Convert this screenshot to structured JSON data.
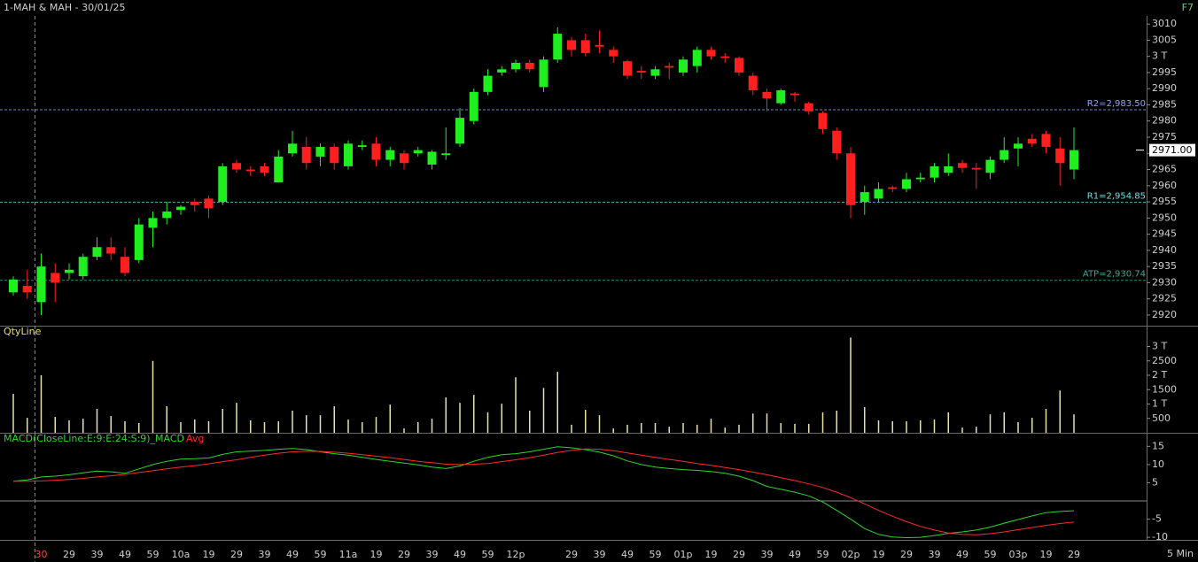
{
  "chart_data": [
    {
      "type": "candlestick",
      "title": "1-MAH & MAH - 30/01/25",
      "shortcut": "F7",
      "interval": "5 Min",
      "up_color": "#1fef1f",
      "down_color": "#ff1f1f",
      "categories": [
        null,
        null,
        "30",
        null,
        "29",
        null,
        "39",
        null,
        "49",
        null,
        "59",
        null,
        "10a",
        null,
        "19",
        null,
        "29",
        null,
        "39",
        null,
        "49",
        null,
        "59",
        null,
        "11a",
        null,
        "19",
        null,
        "29",
        null,
        "39",
        null,
        "49",
        null,
        "59",
        null,
        "12p",
        null,
        null,
        null,
        "29",
        null,
        "39",
        null,
        "49",
        null,
        "59",
        null,
        "01p",
        null,
        "19",
        null,
        "29",
        null,
        "39",
        null,
        "49",
        null,
        "59",
        null,
        "02p",
        null,
        "19",
        null,
        "29",
        null,
        "39",
        null,
        "49",
        null,
        "59",
        null,
        "03p",
        null,
        "19",
        null,
        "29"
      ],
      "open": [
        2927,
        2929,
        2924,
        2933,
        2933,
        2932,
        2938,
        2941,
        2938,
        2937,
        2947,
        2950,
        2952.5,
        2955,
        2956,
        2955,
        2967,
        2965,
        2966,
        2961,
        2970,
        2972,
        2969,
        2972,
        2966,
        2972,
        2973,
        2968,
        2970,
        2970,
        2966.5,
        2969.5,
        2973,
        2980,
        2989,
        2995,
        2996,
        2998,
        2990.5,
        2999,
        3005,
        3005,
        3003.5,
        3002,
        2998.5,
        2995.5,
        2994,
        2997,
        2995,
        2997,
        3002,
        3000,
        2999.5,
        2994,
        2989,
        2985.5,
        2988.5,
        2985.5,
        2982.5,
        2977,
        2970,
        2955,
        2956,
        2959.5,
        2959,
        2962,
        2962.5,
        2964,
        2967,
        2965.5,
        2964,
        2968,
        2971.5,
        2974.5,
        2976,
        2971.5,
        2965
      ],
      "high": [
        2932,
        2934,
        2939,
        2936,
        2936,
        2939,
        2944,
        2944,
        2941,
        2950,
        2952,
        2955,
        2954,
        2956,
        2957,
        2967,
        2968,
        2966,
        2967,
        2971,
        2977,
        2975,
        2973,
        2973,
        2974,
        2974,
        2975,
        2972,
        2971,
        2972,
        2971,
        2978,
        2984,
        2990,
        2996,
        2997,
        2999,
        2999,
        3000,
        3009,
        3006,
        3007,
        3008,
        3003,
        2999,
        2997,
        2997,
        2998,
        3000,
        3003,
        3003,
        3001,
        3000,
        2995,
        2990,
        2990,
        2989,
        2986,
        2983,
        2978,
        2972,
        2960,
        2961,
        2960,
        2964,
        2964,
        2967,
        2970,
        2968,
        2967,
        2969,
        2975,
        2975,
        2976,
        2977,
        2975,
        2978
      ],
      "low": [
        2926,
        2925,
        2920,
        2924,
        2931,
        2931,
        2937,
        2937,
        2932,
        2936,
        2941,
        2948,
        2951,
        2952,
        2950,
        2954,
        2964,
        2963,
        2963,
        2961,
        2969,
        2965,
        2966,
        2965,
        2965,
        2971,
        2966,
        2966,
        2965,
        2969,
        2965,
        2968,
        2972,
        2979,
        2988,
        2994,
        2995,
        2995,
        2989,
        2998,
        3000,
        3000,
        3001,
        2998,
        2993,
        2993,
        2993,
        2993,
        2994,
        2995,
        2999,
        2998,
        2994,
        2988,
        2983,
        2985,
        2986,
        2982,
        2976,
        2968,
        2950,
        2951,
        2955,
        2958,
        2958,
        2961,
        2961,
        2963,
        2964,
        2959,
        2962,
        2967,
        2966,
        2972,
        2970,
        2960,
        2962
      ],
      "close": [
        2931,
        2927,
        2935,
        2930,
        2934,
        2938,
        2941,
        2939,
        2933,
        2948,
        2950,
        2952,
        2953.5,
        2954,
        2953,
        2966,
        2965,
        2964.5,
        2964,
        2969,
        2973,
        2967,
        2972,
        2967,
        2973,
        2972.5,
        2968,
        2971,
        2967,
        2971,
        2970.5,
        2970,
        2981,
        2989,
        2994,
        2996,
        2998,
        2996,
        2999,
        3007,
        3002,
        3001,
        3003,
        3000,
        2994,
        2995,
        2996,
        2996.5,
        2999,
        3002,
        3000,
        2999.5,
        2995,
        2989.5,
        2987,
        2989.5,
        2988,
        2983,
        2977.5,
        2970,
        2954,
        2958,
        2959,
        2959,
        2962,
        2962.5,
        2966,
        2966,
        2965.5,
        2965,
        2968,
        2971,
        2973,
        2973,
        2972,
        2967,
        2971
      ],
      "ylim": [
        2916.7,
        3012.5
      ],
      "yticks": [
        3010,
        3005,
        {
          "value": 3000,
          "label": "3 T"
        },
        2995,
        2990,
        2985,
        2980,
        2975,
        2970,
        2965,
        2960,
        2955,
        2950,
        2945,
        2940,
        2935,
        2930,
        2925,
        2920
      ],
      "levels": [
        {
          "label": "R2=2,983.50",
          "value": 2983.5,
          "color": "#8ea6ff"
        },
        {
          "label": "R1=2,954.85",
          "value": 2954.85,
          "color": "#6fe0e8"
        },
        {
          "label": "ATP=2,930.74",
          "value": 2930.74,
          "color": "#3aa99a"
        }
      ],
      "last_price": {
        "value": 2971,
        "label": "2971.00"
      }
    },
    {
      "type": "bar",
      "title": "QtyLine",
      "color": "#e8e2a8",
      "values": [
        1350,
        520,
        2000,
        550,
        430,
        490,
        830,
        580,
        400,
        340,
        2500,
        920,
        370,
        460,
        400,
        830,
        1040,
        430,
        370,
        400,
        770,
        610,
        610,
        920,
        460,
        370,
        550,
        980,
        150,
        370,
        490,
        1230,
        1040,
        1320,
        710,
        1010,
        1930,
        770,
        1560,
        2120,
        280,
        800,
        610,
        150,
        280,
        340,
        340,
        210,
        340,
        280,
        490,
        180,
        280,
        670,
        670,
        340,
        310,
        310,
        710,
        770,
        3310,
        890,
        430,
        400,
        400,
        430,
        460,
        710,
        180,
        210,
        640,
        710,
        370,
        520,
        830,
        1470,
        640
      ],
      "ylim": [
        0,
        3600
      ],
      "yticks": [
        500,
        {
          "value": 1000,
          "label": "1 T"
        },
        1500,
        {
          "value": 2000,
          "label": "2 T"
        },
        2500,
        {
          "value": 3000,
          "label": "3 T"
        }
      ]
    },
    {
      "type": "line",
      "series": [
        {
          "name": "MACD(CloseLine:E:9:E:24:S:9)_MACD",
          "color": "#2fd52f",
          "values": [
            5.4,
            5.8,
            6.6,
            6.8,
            7.2,
            7.7,
            8.2,
            8.0,
            7.6,
            8.8,
            10.0,
            10.9,
            11.5,
            11.6,
            11.8,
            12.8,
            13.5,
            13.7,
            13.9,
            14.2,
            14.4,
            14.1,
            13.5,
            13.0,
            12.6,
            12.0,
            11.4,
            10.9,
            10.4,
            9.9,
            9.3,
            8.9,
            9.6,
            10.9,
            12.0,
            12.7,
            13.0,
            13.5,
            14.2,
            14.9,
            14.6,
            14.1,
            13.4,
            12.4,
            11.0,
            10.0,
            9.3,
            8.9,
            8.6,
            8.4,
            8.1,
            7.6,
            6.8,
            5.6,
            4.0,
            3.2,
            2.4,
            1.4,
            -0.3,
            -2.6,
            -5.0,
            -7.6,
            -9.2,
            -9.9,
            -10.1,
            -10.0,
            -9.5,
            -8.9,
            -8.5,
            -8.0,
            -7.2,
            -6.1,
            -5.1,
            -4.1,
            -3.2,
            -2.9,
            -2.7
          ]
        },
        {
          "name": "Avg",
          "color": "#ff2a2a",
          "values": [
            5.4,
            5.4,
            5.5,
            5.7,
            5.9,
            6.2,
            6.6,
            6.9,
            7.3,
            7.8,
            8.3,
            8.8,
            9.3,
            9.7,
            10.2,
            10.8,
            11.3,
            12.0,
            12.6,
            13.1,
            13.5,
            13.7,
            13.6,
            13.4,
            13.1,
            12.7,
            12.3,
            11.9,
            11.4,
            10.9,
            10.5,
            10.1,
            10.0,
            10.1,
            10.3,
            10.8,
            11.3,
            11.9,
            12.6,
            13.3,
            13.9,
            14.3,
            14.2,
            13.8,
            13.2,
            12.6,
            12.0,
            11.4,
            10.9,
            10.3,
            9.8,
            9.2,
            8.6,
            7.9,
            7.2,
            6.4,
            5.6,
            4.7,
            3.7,
            2.4,
            0.9,
            -0.8,
            -2.6,
            -4.2,
            -5.7,
            -7.0,
            -8.0,
            -8.8,
            -9.2,
            -9.3,
            -9.0,
            -8.5,
            -7.9,
            -7.3,
            -6.7,
            -6.2,
            -5.8
          ]
        }
      ],
      "ylim": [
        -10.7,
        18
      ],
      "yticks": [
        15,
        10,
        5,
        -5,
        -10
      ]
    }
  ]
}
